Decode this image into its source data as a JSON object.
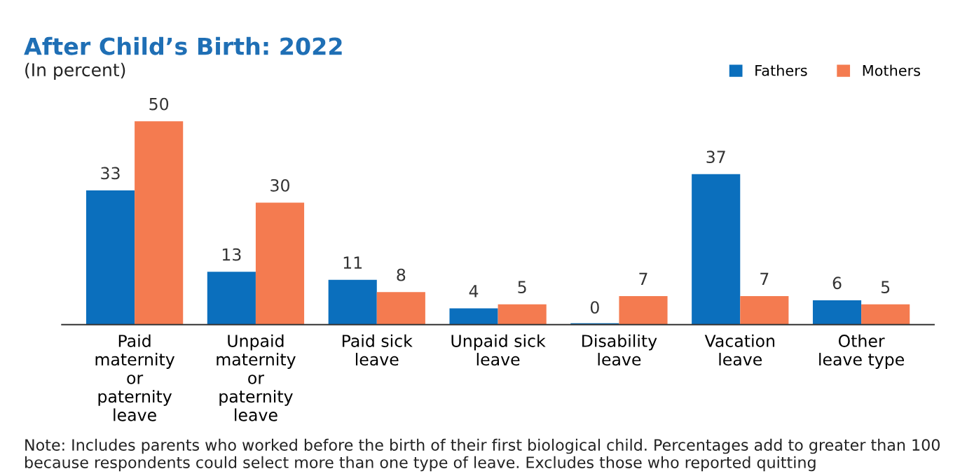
{
  "chart_data": {
    "type": "bar",
    "title": "After Child’s Birth: 2022",
    "subtitle": "(In percent)",
    "categories": [
      "Paid\nmaternity\nor\npaternity\nleave",
      "Unpaid\nmaternity\nor\npaternity\nleave",
      "Paid sick\nleave",
      "Unpaid sick\nleave",
      "Disability\nleave",
      "Vacation\nleave",
      "Other\nleave type"
    ],
    "series": [
      {
        "name": "Fathers",
        "color": "#0b6fbd",
        "values": [
          33,
          13,
          11,
          4,
          0,
          37,
          6
        ]
      },
      {
        "name": "Mothers",
        "color": "#f47b50",
        "values": [
          50,
          30,
          8,
          5,
          7,
          7,
          5
        ]
      }
    ],
    "data_labels": true,
    "legend": "top right",
    "grid": false,
    "annotations": [
      "Note: Includes parents who worked before the birth of their first biological child. Percentages add to greater than 100 because respondents could select more than one type of leave. Excludes those who reported quitting"
    ]
  }
}
